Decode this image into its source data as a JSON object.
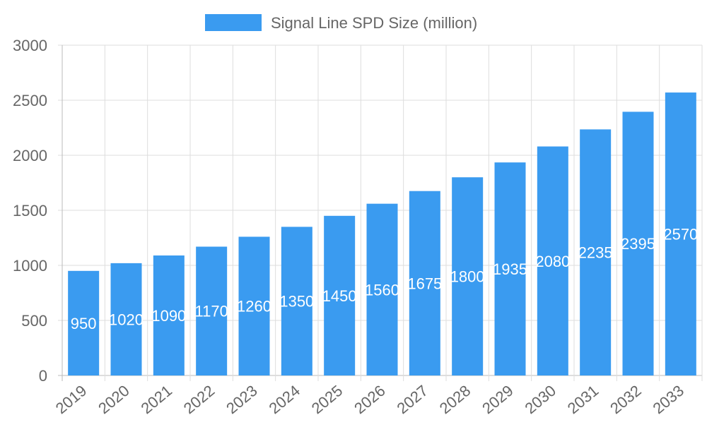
{
  "chart_data": {
    "type": "bar",
    "title": "",
    "legend": {
      "position": "top",
      "entries": [
        "Signal Line SPD Size (million)"
      ]
    },
    "categories": [
      "2019",
      "2020",
      "2021",
      "2022",
      "2023",
      "2024",
      "2025",
      "2026",
      "2027",
      "2028",
      "2029",
      "2030",
      "2031",
      "2032",
      "2033"
    ],
    "series": [
      {
        "name": "Signal Line SPD Size (million)",
        "color": "#3a9bf0",
        "values": [
          950,
          1020,
          1090,
          1170,
          1260,
          1350,
          1450,
          1560,
          1675,
          1800,
          1935,
          2080,
          2235,
          2395,
          2570
        ]
      }
    ],
    "xlabel": "",
    "ylabel": "",
    "ylim": [
      0,
      3000
    ],
    "yticks": [
      0,
      500,
      1000,
      1500,
      2000,
      2500,
      3000
    ],
    "grid": true,
    "data_labels": true
  }
}
